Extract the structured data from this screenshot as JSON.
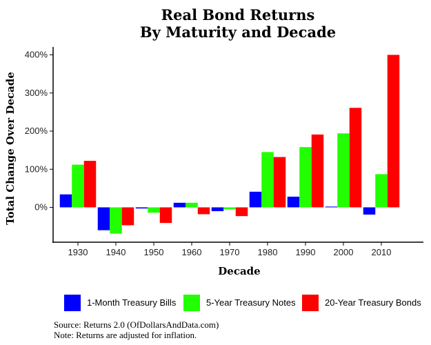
{
  "chart_data": {
    "type": "bar",
    "title": "Real Bond Returns",
    "subtitle": "By Maturity and Decade",
    "xlabel": "Decade",
    "ylabel": "Total Change Over Decade",
    "categories": [
      "1930",
      "1940",
      "1950",
      "1960",
      "1970",
      "1980",
      "1990",
      "2000",
      "2010"
    ],
    "ylim": [
      -90,
      420
    ],
    "yticks": [
      0,
      100,
      200,
      300,
      400
    ],
    "ytick_labels": [
      "0%",
      "100%",
      "200%",
      "300%",
      "400%"
    ],
    "grid": false,
    "legend_position": "bottom",
    "series": [
      {
        "name": "1-Month Treasury Bills",
        "color": "#0000ff",
        "values": [
          34,
          -60,
          -3,
          12,
          -10,
          41,
          28,
          2,
          -19
        ]
      },
      {
        "name": "5-Year Treasury Notes",
        "color": "#22ff00",
        "values": [
          112,
          -69,
          -14,
          12,
          -5,
          145,
          158,
          194,
          87
        ]
      },
      {
        "name": "20-Year Treasury Bonds",
        "color": "#ff0000",
        "values": [
          122,
          -47,
          -41,
          -18,
          -23,
          132,
          191,
          261,
          400
        ]
      }
    ]
  },
  "notes": {
    "source": "Source: Returns 2.0 (OfDollarsAndData.com)",
    "note": "Note: Returns are adjusted for inflation."
  }
}
